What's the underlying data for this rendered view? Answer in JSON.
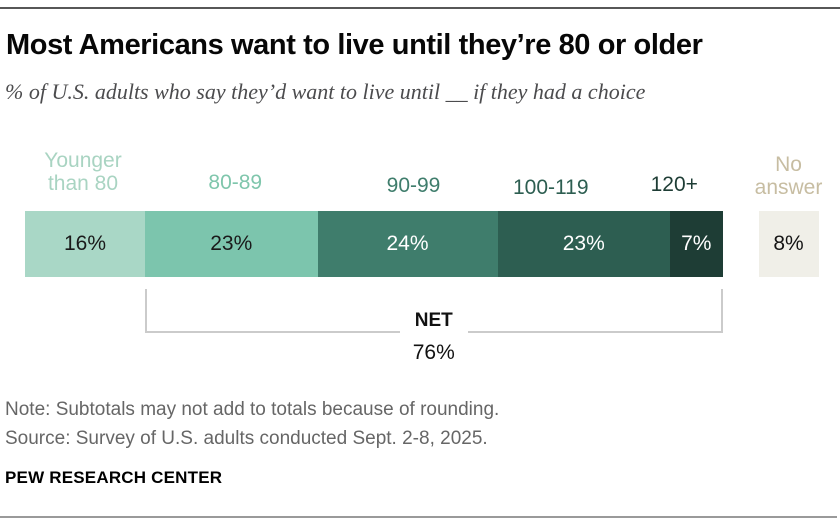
{
  "header": {
    "title": "Most Americans want to live until they’re 80 or older",
    "subtitle": "% of U.S. adults who say they’d want to live until __ if they had a choice"
  },
  "chart_data": {
    "type": "bar",
    "subtype": "horizontal-stacked-single-bar",
    "unit": "%",
    "title": "Most Americans want to live until they’re 80 or older",
    "subtitle": "% of U.S. adults who say they’d want to live until __ if they had a choice",
    "segments": [
      {
        "label": "Younger than 80",
        "label_lines": [
          "Younger",
          "than 80"
        ],
        "value": 16,
        "color": "#a9d7c6",
        "label_color": "#a9d4c2",
        "text_color": "#1a1a1a"
      },
      {
        "label": "80-89",
        "label_lines": [
          "80-89"
        ],
        "value": 23,
        "color": "#7cc5ad",
        "label_color": "#7fc6ac",
        "text_color": "#1a1a1a"
      },
      {
        "label": "90-99",
        "label_lines": [
          "90-99"
        ],
        "value": 24,
        "color": "#3f7d6c",
        "label_color": "#3f7d6c",
        "text_color": "#ffffff"
      },
      {
        "label": "100-119",
        "label_lines": [
          "100-119"
        ],
        "value": 23,
        "color": "#2d5e51",
        "label_color": "#2d5e51",
        "text_color": "#ffffff"
      },
      {
        "label": "120+",
        "label_lines": [
          "120+"
        ],
        "value": 7,
        "color": "#1e3d35",
        "label_color": "#1e3d35",
        "text_color": "#ffffff"
      }
    ],
    "no_answer": {
      "label": "No answer",
      "label_lines": [
        "No",
        "answer"
      ],
      "value": 8,
      "color": "#f0efe8",
      "label_color": "#c7bda2",
      "text_color": "#141414"
    },
    "net": {
      "label": "NET",
      "value": 76,
      "value_display": "76%",
      "span_from": "80-89",
      "span_to": "120+"
    },
    "axis_scale": "percent of adults, segments proportional to value"
  },
  "footer": {
    "note": "Note: Subtotals may not add to totals because of rounding.",
    "source": "Source: Survey of U.S. adults conducted Sept. 2-8, 2025.",
    "org": "PEW RESEARCH CENTER"
  }
}
